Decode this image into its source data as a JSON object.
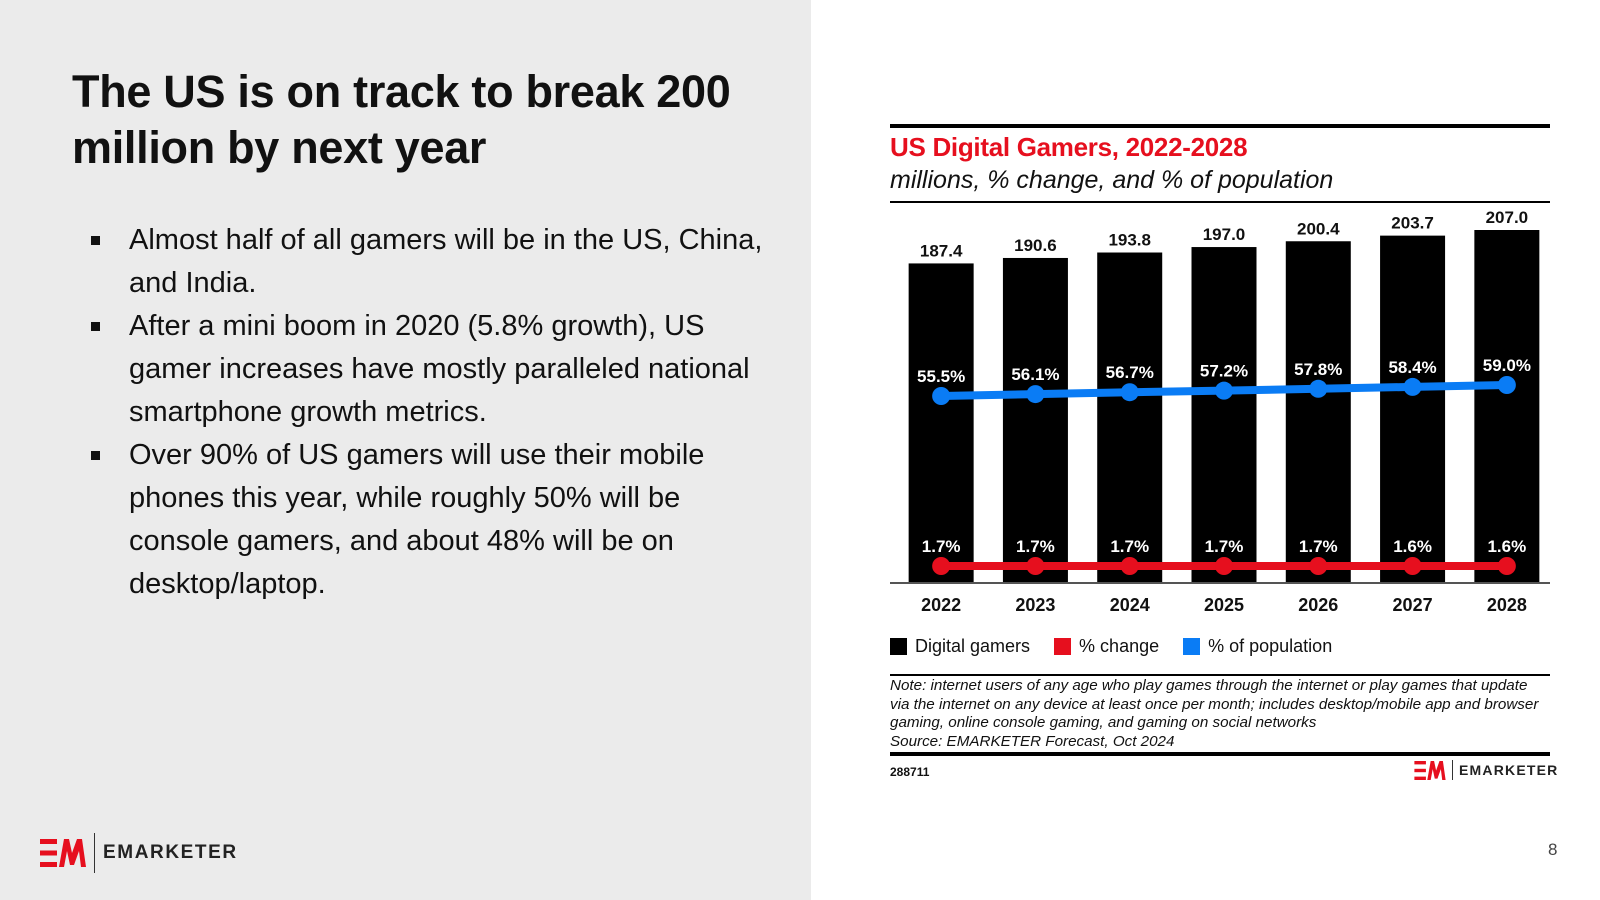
{
  "slide": {
    "title": "The US is on track to break 200 million by next year",
    "bullets": [
      "Almost half of all gamers will be in the US, China, and India.",
      "After a mini boom in 2020 (5.8% growth), US gamer increases have mostly paralleled national smartphone growth metrics.",
      "Over 90% of US gamers will use their mobile phones this year, while roughly 50% will be console gamers, and about 48% will be on desktop/laptop."
    ],
    "page_number": "8",
    "brand": "EMARKETER"
  },
  "colors": {
    "bars": "#000000",
    "pct_change": "#e60f1e",
    "pct_population": "#0a7cf5",
    "title_red": "#e60f1e",
    "left_panel": "#ebebeb"
  },
  "chart_data": {
    "type": "bar",
    "title": "US Digital Gamers, 2022-2028",
    "subtitle": "millions, % change, and % of population",
    "categories": [
      "2022",
      "2023",
      "2024",
      "2025",
      "2026",
      "2027",
      "2028"
    ],
    "series": [
      {
        "name": "Digital gamers",
        "type": "bar",
        "values": [
          187.4,
          190.6,
          193.8,
          197.0,
          200.4,
          203.7,
          207.0
        ],
        "labels": [
          "187.4",
          "190.6",
          "193.8",
          "197.0",
          "200.4",
          "203.7",
          "207.0"
        ]
      },
      {
        "name": "% change",
        "type": "line",
        "values": [
          1.7,
          1.7,
          1.7,
          1.7,
          1.7,
          1.6,
          1.6
        ],
        "labels": [
          "1.7%",
          "1.7%",
          "1.7%",
          "1.7%",
          "1.7%",
          "1.6%",
          "1.6%"
        ]
      },
      {
        "name": "% of population",
        "type": "line",
        "values": [
          55.5,
          56.1,
          56.7,
          57.2,
          57.8,
          58.4,
          59.0
        ],
        "labels": [
          "55.5%",
          "56.1%",
          "56.7%",
          "57.2%",
          "57.8%",
          "58.4%",
          "59.0%"
        ]
      }
    ],
    "legend": [
      "Digital gamers",
      "% change",
      "% of population"
    ],
    "legend_position": "bottom-left",
    "xlabel": "",
    "ylabel": "",
    "grid": false,
    "note": "Note: internet users of any age who play games through the internet or play games that update via the internet on any device at least once per month; includes desktop/mobile app and browser gaming, online console gaming, and gaming on social networks",
    "source": "Source: EMARKETER Forecast, Oct 2024",
    "chart_id": "288711"
  }
}
